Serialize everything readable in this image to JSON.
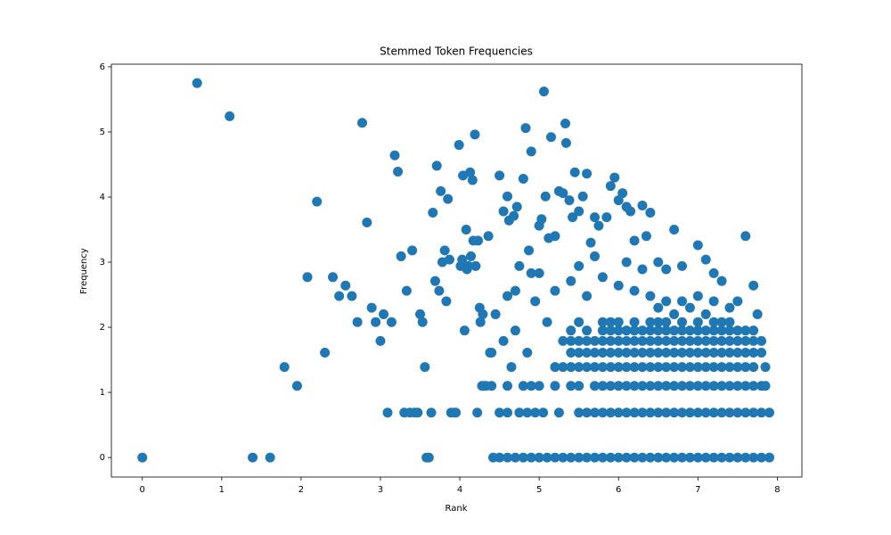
{
  "chart_data": {
    "type": "scatter",
    "title": "Stemmed Token Frequencies",
    "x_label": "Rank",
    "y_label": "Frequency",
    "color": "#1f77b4",
    "xlim": [
      -0.39,
      8.31
    ],
    "ylim": [
      -0.3,
      6.04
    ],
    "xticks": [
      0,
      1,
      2,
      3,
      4,
      5,
      6,
      7,
      8
    ],
    "yticks": [
      0,
      1,
      2,
      3,
      4,
      5,
      6
    ],
    "series": [
      {
        "x": [
          0,
          0.69,
          1.1,
          1.39,
          1.61,
          1.79,
          1.95,
          2.08,
          2.2,
          2.3,
          2.4,
          2.48,
          2.56,
          2.64,
          2.71,
          2.77,
          2.83,
          2.89,
          2.94,
          3.0,
          3.04,
          3.09,
          3.14,
          3.18,
          3.22,
          3.26,
          3.3,
          3.33,
          3.37,
          3.4,
          3.43,
          3.47,
          3.5,
          3.53,
          3.56,
          3.58,
          3.61,
          3.64,
          3.66,
          3.69,
          3.71,
          3.74,
          3.76,
          3.78,
          3.81,
          3.83,
          3.85,
          3.87,
          3.89,
          3.93,
          3.95,
          3.99,
          4.01,
          4.03,
          4.04,
          4.06,
          4.08,
          4.09,
          4.11,
          4.13,
          4.14,
          4.16,
          4.17,
          4.19,
          4.2,
          4.22,
          4.23,
          4.25,
          4.26,
          4.28,
          4.29,
          4.33,
          4.36,
          4.38
        ],
        "values": [
          0,
          5.75,
          5.24,
          0,
          0,
          1.39,
          1.1,
          2.77,
          3.93,
          1.61,
          2.77,
          2.48,
          2.64,
          2.48,
          2.08,
          5.14,
          3.61,
          2.3,
          2.08,
          1.79,
          2.2,
          0.69,
          2.08,
          4.64,
          4.39,
          3.09,
          0.69,
          2.56,
          0.69,
          3.18,
          0.69,
          0.69,
          2.2,
          2.08,
          1.39,
          0,
          0,
          0.69,
          3.76,
          2.71,
          4.48,
          2.56,
          4.09,
          3,
          3.18,
          2.4,
          3.97,
          3.04,
          0.69,
          0.69,
          0.69,
          4.8,
          2.94,
          3.04,
          4.33,
          1.95,
          3.5,
          2.89,
          2.94,
          4.38,
          3.09,
          4.26,
          3.33,
          4.96,
          2.94,
          0.69,
          3.33,
          2.3,
          2.08,
          1.1,
          2.2,
          1.1,
          3.4,
          1.61
        ]
      },
      {
        "x": [
          4.5,
          4.55,
          4.6,
          4.62,
          4.68,
          4.72,
          4.75,
          4.8,
          4.83,
          4.87,
          4.9,
          4.95,
          5.0,
          5.03,
          5.06,
          5.08,
          5.12,
          5.15,
          5.2,
          5.25,
          5.3,
          5.33,
          5.34,
          5.38,
          5.42,
          5.45,
          5.5,
          5.55,
          5.6,
          5.65,
          5.7,
          5.75,
          5.85,
          5.9,
          5.95,
          6.0,
          6.05,
          6.1,
          6.15,
          6.2,
          6.3,
          6.35,
          6.4,
          6.5,
          6.6,
          6.7,
          6.8,
          7.0,
          7.1,
          7.2,
          7.3,
          7.6,
          7.7,
          7.75,
          5.0,
          5.2,
          5.4,
          5.6,
          5.8,
          6.0,
          6.2,
          6.4,
          6.5,
          6.6,
          6.7,
          6.8,
          6.9,
          7.0,
          7.1,
          7.2,
          7.4,
          7.5,
          6.3,
          6.1,
          5.7,
          5.5,
          4.6,
          4.7,
          4.45,
          4.9
        ],
        "values": [
          4.33,
          3.78,
          4.01,
          3.64,
          3.71,
          3.85,
          2.94,
          4.28,
          5.06,
          3.18,
          4.7,
          2.4,
          3.56,
          3.66,
          5.62,
          4.01,
          3.37,
          4.92,
          3.4,
          4.09,
          4.06,
          5.13,
          4.83,
          3.95,
          3.69,
          4.38,
          3.78,
          4.01,
          4.36,
          3.3,
          3.69,
          3.56,
          3.69,
          4.17,
          4.3,
          3.95,
          4.06,
          3.85,
          3.78,
          3.33,
          3.87,
          3.4,
          3.76,
          3.0,
          2.89,
          3.5,
          2.94,
          3.26,
          3.04,
          2.83,
          2.71,
          3.4,
          2.64,
          2.2,
          2.83,
          2.56,
          2.71,
          2.48,
          2.77,
          2.64,
          2.56,
          2.48,
          2.3,
          2.4,
          2.2,
          2.4,
          2.3,
          2.48,
          2.2,
          2.4,
          2.3,
          2.4,
          2.89,
          3.0,
          3.09,
          2.94,
          2.48,
          2.56,
          2.2,
          2.83
        ]
      },
      {
        "x": [
          4.42,
          4.5,
          4.6,
          4.7,
          4.8,
          4.9,
          5.0,
          5.1,
          5.2,
          5.3,
          5.4,
          5.5,
          5.6,
          5.7,
          5.8,
          5.9,
          6.0,
          6.1,
          6.2,
          6.3,
          6.4,
          6.5,
          6.6,
          6.7,
          6.8,
          6.9,
          7.0,
          7.1,
          7.2,
          7.3,
          7.4,
          7.5,
          7.6,
          7.7,
          7.8,
          7.9
        ],
        "values": [
          0,
          0,
          0,
          0,
          0,
          0,
          0,
          0,
          0,
          0,
          0,
          0,
          0,
          0,
          0,
          0,
          0,
          0,
          0,
          0,
          0,
          0,
          0,
          0,
          0,
          0,
          0,
          0,
          0,
          0,
          0,
          0,
          0,
          0,
          0,
          0
        ]
      },
      {
        "x": [
          4.5,
          4.6,
          4.75,
          4.85,
          4.95,
          5.05,
          5.25,
          5.5,
          5.6,
          5.7,
          5.8,
          5.9,
          6.0,
          6.1,
          6.2,
          6.3,
          6.4,
          6.5,
          6.6,
          6.7,
          6.8,
          6.9,
          7.0,
          7.1,
          7.2,
          7.3,
          7.4,
          7.5,
          7.6,
          7.7,
          7.8,
          7.9
        ],
        "values": [
          0.69,
          0.69,
          0.69,
          0.69,
          0.69,
          0.69,
          0.69,
          0.69,
          0.69,
          0.69,
          0.69,
          0.69,
          0.69,
          0.69,
          0.69,
          0.69,
          0.69,
          0.69,
          0.69,
          0.69,
          0.69,
          0.69,
          0.69,
          0.69,
          0.69,
          0.69,
          0.69,
          0.69,
          0.69,
          0.69,
          0.69,
          0.69
        ]
      },
      {
        "x": [
          4.3,
          4.4,
          4.6,
          4.8,
          4.9,
          5.0,
          5.2,
          5.4,
          5.5,
          5.7,
          5.8,
          5.9,
          6.0,
          6.1,
          6.2,
          6.3,
          6.4,
          6.5,
          6.6,
          6.7,
          6.8,
          6.9,
          7.0,
          7.1,
          7.2,
          7.3,
          7.4,
          7.5,
          7.6,
          7.7,
          7.8,
          7.85
        ],
        "values": [
          1.1,
          1.1,
          1.1,
          1.1,
          1.1,
          1.1,
          1.1,
          1.1,
          1.1,
          1.1,
          1.1,
          1.1,
          1.1,
          1.1,
          1.1,
          1.1,
          1.1,
          1.1,
          1.1,
          1.1,
          1.1,
          1.1,
          1.1,
          1.1,
          1.1,
          1.1,
          1.1,
          1.1,
          1.1,
          1.1,
          1.1,
          1.1
        ]
      },
      {
        "x": [
          4.65,
          5.2,
          5.3,
          5.4,
          5.5,
          5.6,
          5.7,
          5.8,
          5.9,
          6.0,
          6.1,
          6.2,
          6.3,
          6.4,
          6.5,
          6.6,
          6.7,
          6.8,
          6.9,
          7.0,
          7.1,
          7.2,
          7.3,
          7.4,
          7.5,
          7.6,
          7.7,
          7.85
        ],
        "values": [
          1.39,
          1.39,
          1.39,
          1.39,
          1.39,
          1.39,
          1.39,
          1.39,
          1.39,
          1.39,
          1.39,
          1.39,
          1.39,
          1.39,
          1.39,
          1.39,
          1.39,
          1.39,
          1.39,
          1.39,
          1.39,
          1.39,
          1.39,
          1.39,
          1.39,
          1.39,
          1.39,
          1.39
        ]
      },
      {
        "x": [
          4.4,
          4.85,
          5.4,
          5.5,
          5.6,
          5.7,
          5.8,
          5.9,
          6.0,
          6.1,
          6.2,
          6.3,
          6.4,
          6.5,
          6.6,
          6.7,
          6.8,
          6.9,
          7.0,
          7.1,
          7.2,
          7.3,
          7.4,
          7.5,
          7.6,
          7.7,
          7.8
        ],
        "values": [
          1.61,
          1.61,
          1.61,
          1.61,
          1.61,
          1.61,
          1.61,
          1.61,
          1.61,
          1.61,
          1.61,
          1.61,
          1.61,
          1.61,
          1.61,
          1.61,
          1.61,
          1.61,
          1.61,
          1.61,
          1.61,
          1.61,
          1.61,
          1.61,
          1.61,
          1.61,
          1.61
        ]
      },
      {
        "x": [
          4.55,
          5.3,
          5.4,
          5.5,
          5.6,
          5.7,
          5.8,
          5.9,
          6.0,
          6.1,
          6.2,
          6.3,
          6.4,
          6.5,
          6.6,
          6.7,
          6.8,
          6.9,
          7.0,
          7.1,
          7.2,
          7.3,
          7.4,
          7.5,
          7.6,
          7.7,
          7.8
        ],
        "values": [
          1.79,
          1.79,
          1.79,
          1.79,
          1.79,
          1.79,
          1.79,
          1.79,
          1.79,
          1.79,
          1.79,
          1.79,
          1.79,
          1.79,
          1.79,
          1.79,
          1.79,
          1.79,
          1.79,
          1.79,
          1.79,
          1.79,
          1.79,
          1.79,
          1.79,
          1.79,
          1.79
        ]
      },
      {
        "x": [
          4.7,
          5.4,
          5.6,
          5.8,
          5.9,
          6.0,
          6.1,
          6.2,
          6.3,
          6.4,
          6.5,
          6.6,
          6.7,
          6.8,
          6.9,
          7.0,
          7.1,
          7.2,
          7.3,
          7.4,
          7.5,
          7.6,
          7.7
        ],
        "values": [
          1.95,
          1.95,
          1.95,
          1.95,
          1.95,
          1.95,
          1.95,
          1.95,
          1.95,
          1.95,
          1.95,
          1.95,
          1.95,
          1.95,
          1.95,
          1.95,
          1.95,
          1.95,
          1.95,
          1.95,
          1.95,
          1.95,
          1.95
        ]
      },
      {
        "x": [
          5.1,
          5.5,
          5.8,
          5.9,
          6.0,
          6.2,
          6.4,
          6.5,
          6.6,
          6.8,
          7.0,
          7.2,
          7.3,
          7.4
        ],
        "values": [
          2.08,
          2.08,
          2.08,
          2.08,
          2.08,
          2.08,
          2.08,
          2.08,
          2.08,
          2.08,
          2.08,
          2.08,
          2.08,
          2.08
        ]
      }
    ]
  }
}
